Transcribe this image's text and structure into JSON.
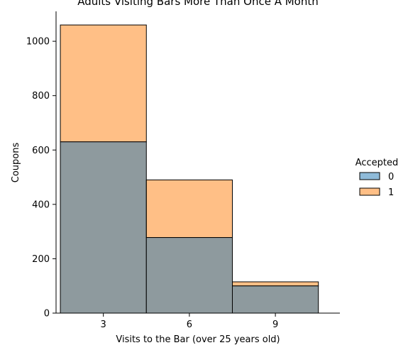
{
  "chart_data": {
    "type": "bar",
    "title": "Adults Visiting Bars More Than Once A Month",
    "xlabel": "Visits to the Bar (over 25 years old)",
    "ylabel": "Coupons",
    "categories": [
      "3",
      "6",
      "9"
    ],
    "x_ticks": [
      "3",
      "6",
      "9"
    ],
    "y_ticks": [
      "0",
      "200",
      "400",
      "600",
      "800",
      "1000"
    ],
    "ylim": [
      0,
      1110
    ],
    "stacked": true,
    "legend": {
      "title": "Accepted",
      "position": "right"
    },
    "series": [
      {
        "name": "0",
        "values": [
          630,
          278,
          100
        ],
        "color": "#1f77b4",
        "fill_alpha": 0.5
      },
      {
        "name": "1",
        "values": [
          430,
          212,
          15
        ],
        "color": "#ff7f0e",
        "fill_alpha": 0.5
      }
    ],
    "overlap_color": "#8e9a9e",
    "grid": false
  }
}
